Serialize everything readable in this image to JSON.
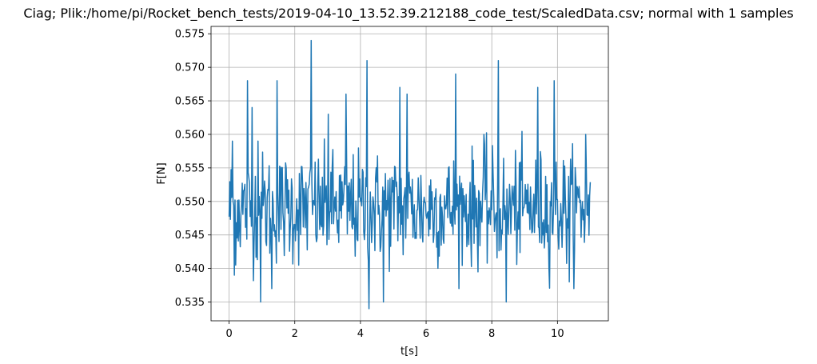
{
  "chart_data": {
    "type": "line",
    "title": "Ciag; Plik:/home/pi/Rocket_bench_tests/2019-04-10_13.52.39.212188_code_test/ScaledData.csv; normal with 1 samples",
    "xlabel": "t[s]",
    "ylabel": "F[N]",
    "xlim": [
      -0.55,
      11.55
    ],
    "ylim": [
      0.5322,
      0.5761
    ],
    "xticks": [
      0,
      2,
      4,
      6,
      8,
      10
    ],
    "xtick_labels": [
      "0",
      "2",
      "4",
      "6",
      "8",
      "10"
    ],
    "yticks": [
      0.535,
      0.54,
      0.545,
      0.55,
      0.555,
      0.56,
      0.565,
      0.57,
      0.575
    ],
    "ytick_labels": [
      "0.535",
      "0.540",
      "0.545",
      "0.550",
      "0.555",
      "0.560",
      "0.565",
      "0.570",
      "0.575"
    ],
    "grid": true,
    "series": [
      {
        "name": "F",
        "color": "#1f77b4",
        "x_start": 0.0,
        "x_step": 0.02,
        "count": 551,
        "mean": 0.549,
        "std": 0.0055,
        "min_observed": 0.534,
        "max_observed": 0.574,
        "spikes": [
          {
            "x": 0.1,
            "y": 0.559
          },
          {
            "x": 0.16,
            "y": 0.539
          },
          {
            "x": 0.55,
            "y": 0.568
          },
          {
            "x": 0.7,
            "y": 0.564
          },
          {
            "x": 0.88,
            "y": 0.559
          },
          {
            "x": 0.95,
            "y": 0.535
          },
          {
            "x": 1.3,
            "y": 0.537
          },
          {
            "x": 1.46,
            "y": 0.568
          },
          {
            "x": 2.5,
            "y": 0.574
          },
          {
            "x": 3.02,
            "y": 0.563
          },
          {
            "x": 3.55,
            "y": 0.566
          },
          {
            "x": 4.2,
            "y": 0.571
          },
          {
            "x": 4.26,
            "y": 0.534
          },
          {
            "x": 4.7,
            "y": 0.535
          },
          {
            "x": 5.2,
            "y": 0.567
          },
          {
            "x": 5.42,
            "y": 0.566
          },
          {
            "x": 6.9,
            "y": 0.569
          },
          {
            "x": 7.75,
            "y": 0.56
          },
          {
            "x": 8.2,
            "y": 0.571
          },
          {
            "x": 8.45,
            "y": 0.535
          },
          {
            "x": 9.4,
            "y": 0.567
          },
          {
            "x": 9.9,
            "y": 0.568
          },
          {
            "x": 10.35,
            "y": 0.538
          },
          {
            "x": 10.85,
            "y": 0.56
          }
        ]
      }
    ]
  }
}
